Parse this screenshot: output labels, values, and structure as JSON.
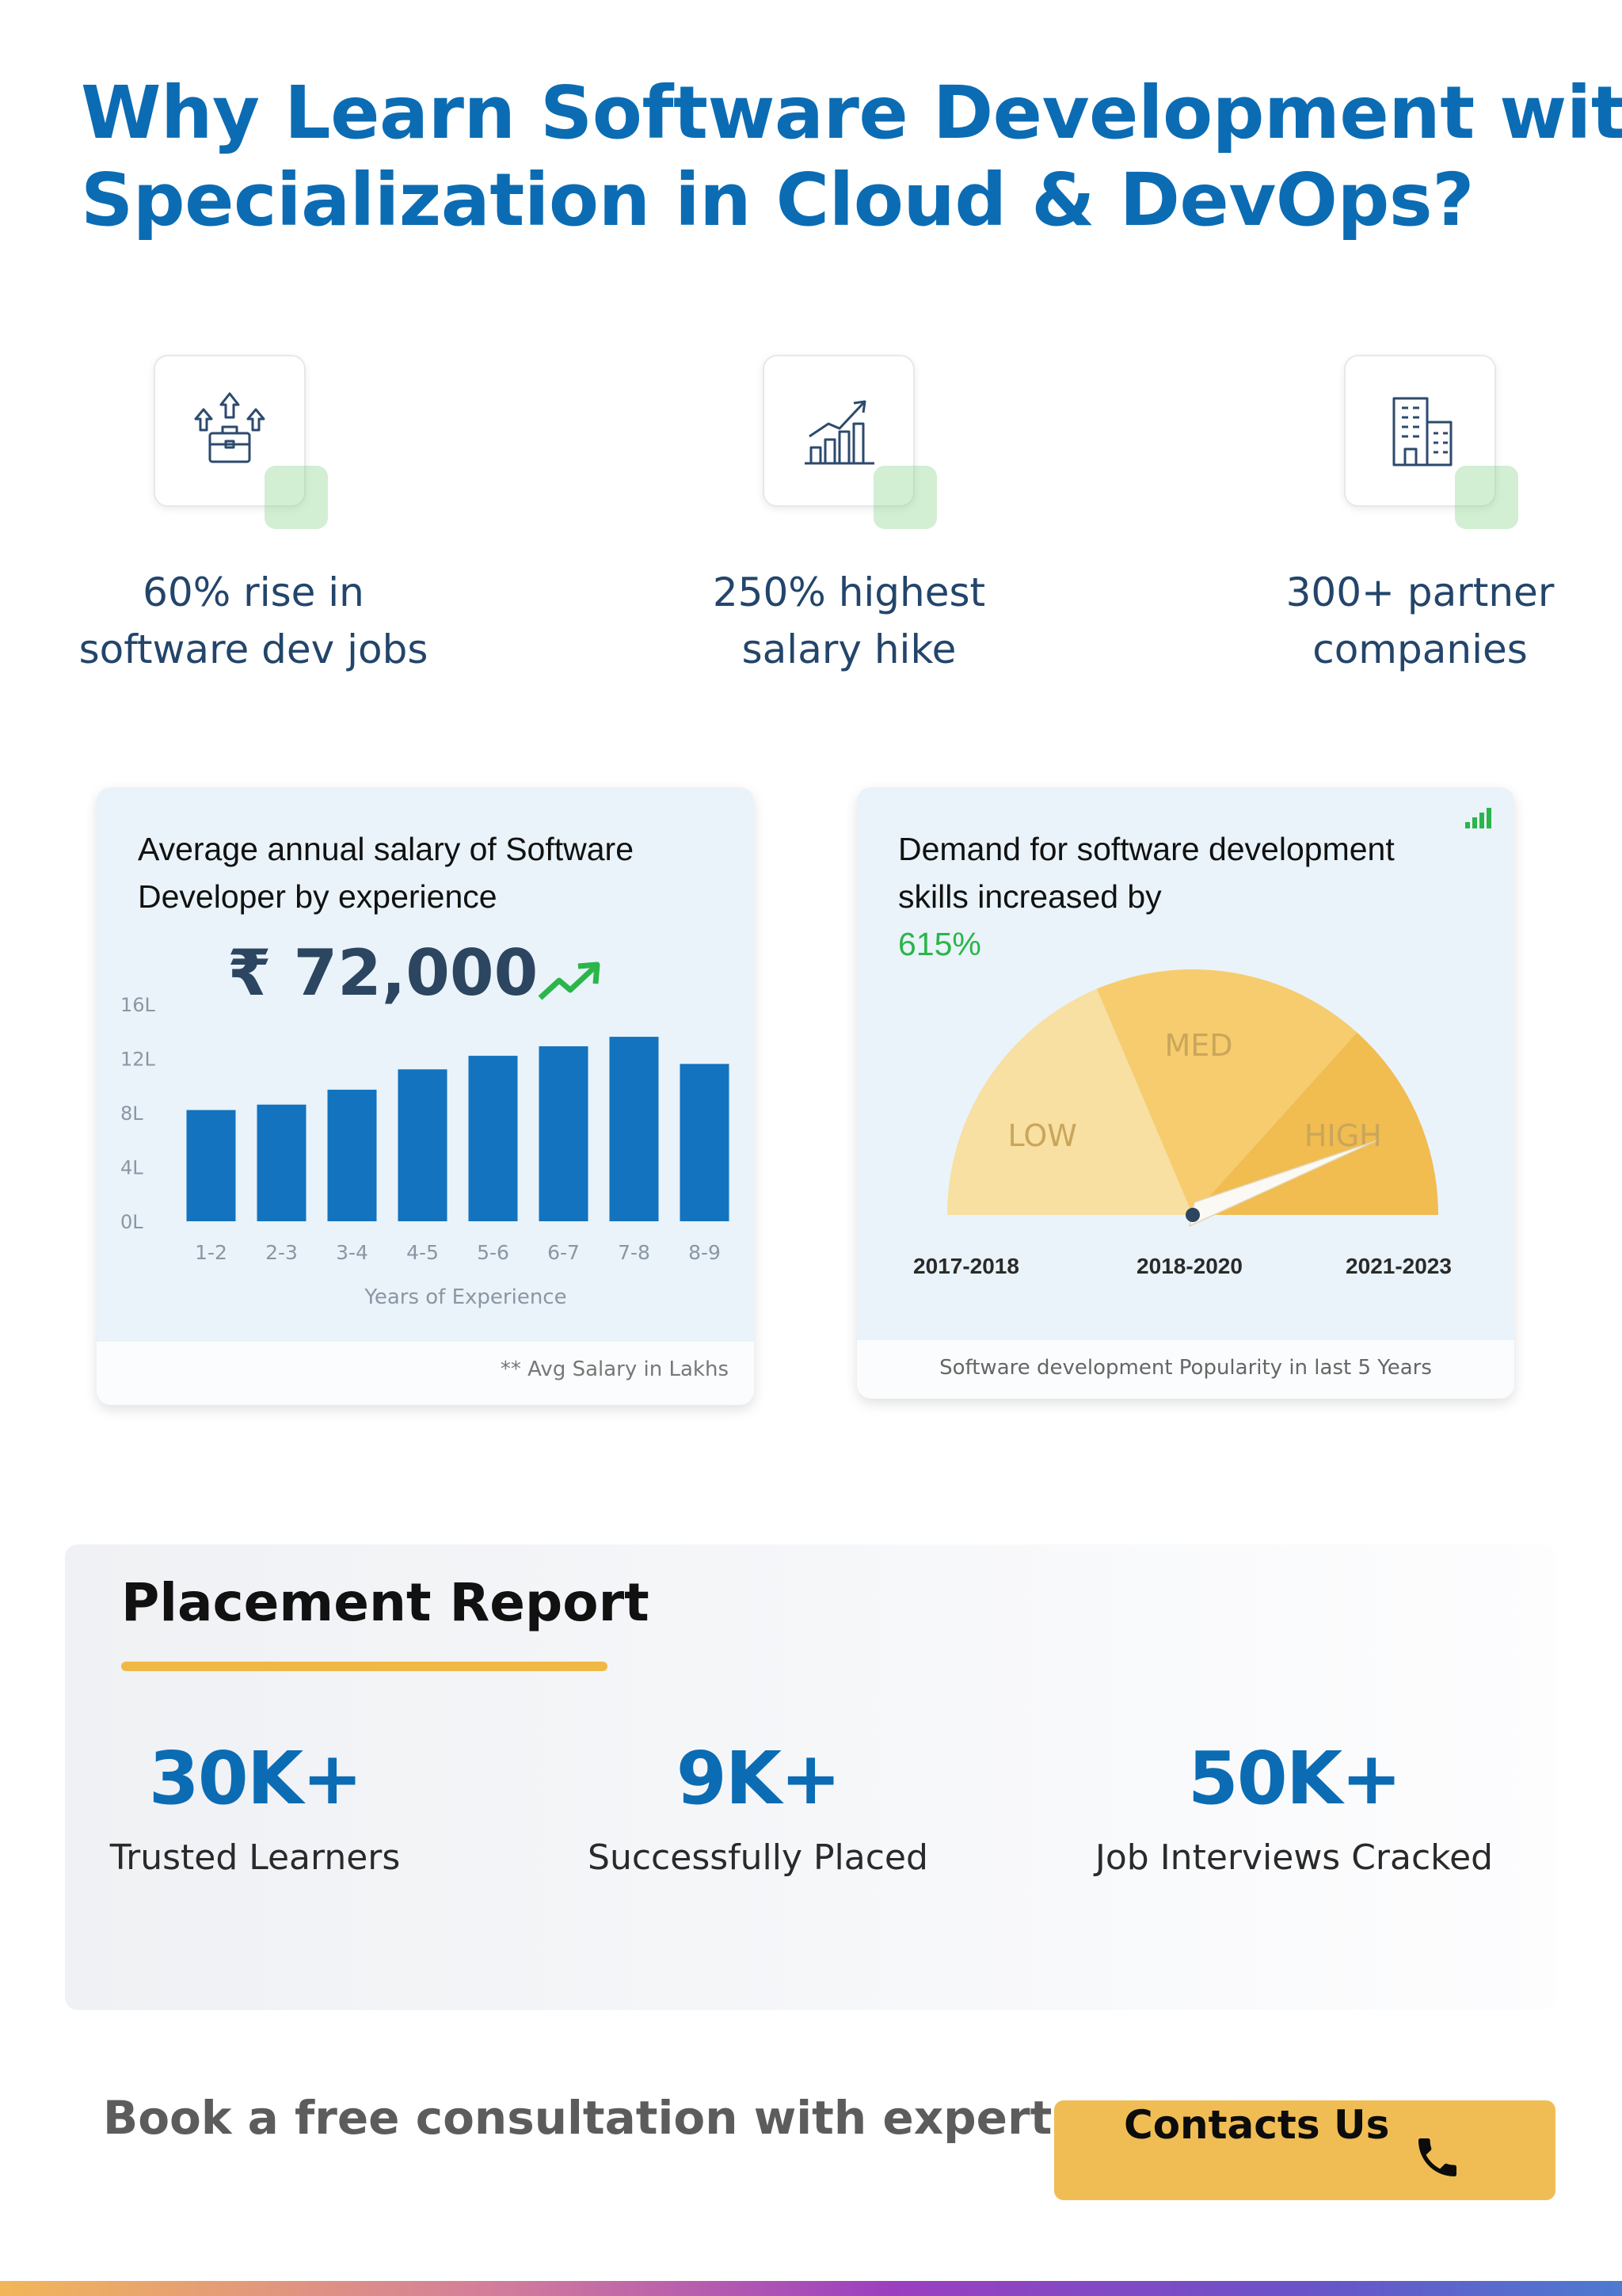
{
  "headline": {
    "line1": "Why Learn Software Development with",
    "line2": "Specialization in Cloud & DevOps?"
  },
  "features": [
    {
      "icon": "briefcase-arrows-icon",
      "line1": "60% rise in",
      "line2": "software dev jobs"
    },
    {
      "icon": "growth-chart-icon",
      "line1": "250% highest",
      "line2": "salary hike"
    },
    {
      "icon": "buildings-icon",
      "line1": "300+ partner",
      "line2": "companies"
    }
  ],
  "salary_card": {
    "title_line1": "Average annual salary of Software",
    "title_line2": "Developer by experience",
    "highlight": "₹ 72,000",
    "footnote": "** Avg Salary in Lakhs"
  },
  "demand_card": {
    "title_line1": "Demand for software development",
    "title_line2_prefix": "skills increased by ",
    "title_line2_value": "615%",
    "footnote": "Software development Popularity in last 5 Years"
  },
  "chart_data": [
    {
      "type": "bar",
      "categories": [
        "1-2",
        "2-3",
        "3-4",
        "4-5",
        "5-6",
        "6-7",
        "7-8",
        "8-9"
      ],
      "values": [
        8.2,
        8.6,
        9.7,
        11.2,
        12.2,
        12.9,
        13.6,
        11.6
      ],
      "yticks": [
        "16L",
        "12L",
        "8L",
        "4L",
        "0L"
      ],
      "ylim": [
        0,
        16
      ],
      "xlabel": "Years of Experience",
      "ylabel": "",
      "color": "#1373be"
    },
    {
      "type": "gauge",
      "segments": [
        "LOW",
        "MED",
        "HIGH"
      ],
      "period_labels": [
        "2017-2018",
        "2018-2020",
        "2021-2023"
      ],
      "level": "HIGH",
      "segment_colors": [
        "#f8dfa2",
        "#f6cc6e",
        "#f1bc50"
      ]
    }
  ],
  "placement": {
    "title": "Placement Report",
    "stats": [
      {
        "value": "30K+",
        "label": "Trusted Learners"
      },
      {
        "value": "9K+",
        "label": "Successfully Placed"
      },
      {
        "value": "50K+",
        "label": "Job Interviews Cracked"
      }
    ]
  },
  "cta": {
    "text": "Book a free consultation with expert",
    "button_label": "Contacts Us",
    "button_icon": "phone-icon"
  },
  "colors": {
    "brand_blue": "#0b6cb4",
    "accent_yellow": "#f0bd55",
    "accent_green": "#2bb54a"
  }
}
